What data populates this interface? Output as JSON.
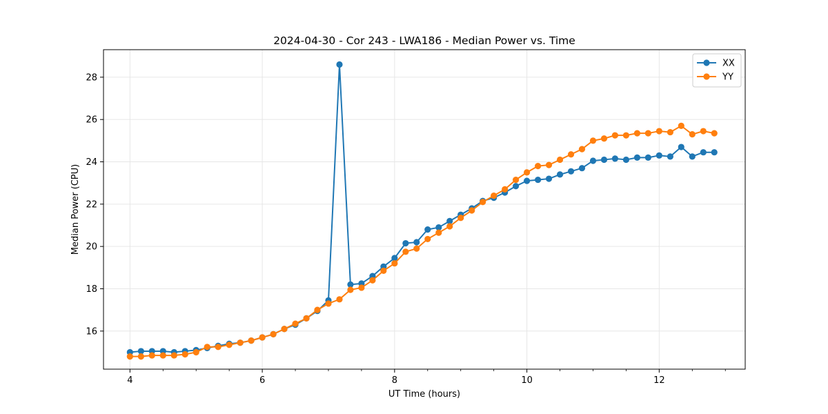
{
  "chart_data": {
    "type": "line",
    "title": "2024-04-30 - Cor 243 - LWA186 - Median Power vs. Time",
    "xlabel": "UT Time (hours)",
    "ylabel": "Median Power (CPU)",
    "xlim": [
      3.6,
      13.3
    ],
    "ylim": [
      14.2,
      29.3
    ],
    "xticks": [
      4,
      6,
      8,
      10,
      12
    ],
    "xtick_labels": [
      "4",
      "6",
      "8",
      "10",
      "12"
    ],
    "yticks": [
      16,
      18,
      20,
      22,
      24,
      26,
      28
    ],
    "ytick_labels": [
      "16",
      "18",
      "20",
      "22",
      "24",
      "26",
      "28"
    ],
    "grid": true,
    "legend_position": "top-right",
    "x": [
      4.0,
      4.167,
      4.333,
      4.5,
      4.667,
      4.833,
      5.0,
      5.167,
      5.333,
      5.5,
      5.667,
      5.833,
      6.0,
      6.167,
      6.333,
      6.5,
      6.667,
      6.833,
      7.0,
      7.167,
      7.333,
      7.5,
      7.667,
      7.833,
      8.0,
      8.167,
      8.333,
      8.5,
      8.667,
      8.833,
      9.0,
      9.167,
      9.333,
      9.5,
      9.667,
      9.833,
      10.0,
      10.167,
      10.333,
      10.5,
      10.667,
      10.833,
      11.0,
      11.167,
      11.333,
      11.5,
      11.667,
      11.833,
      12.0,
      12.167,
      12.333,
      12.5,
      12.667,
      12.833
    ],
    "series": [
      {
        "name": "XX",
        "color": "#1f77b4",
        "values": [
          15.0,
          15.05,
          15.05,
          15.05,
          15.0,
          15.05,
          15.1,
          15.2,
          15.3,
          15.4,
          15.45,
          15.55,
          15.7,
          15.85,
          16.1,
          16.3,
          16.6,
          16.95,
          17.45,
          28.6,
          18.2,
          18.25,
          18.6,
          19.05,
          19.45,
          20.15,
          20.2,
          20.8,
          20.9,
          21.2,
          21.5,
          21.8,
          22.15,
          22.3,
          22.55,
          22.85,
          23.1,
          23.15,
          23.2,
          23.4,
          23.55,
          23.7,
          24.05,
          24.1,
          24.15,
          24.1,
          24.2,
          24.2,
          24.3,
          24.25,
          24.7,
          24.25,
          24.45,
          24.45
        ]
      },
      {
        "name": "YY",
        "color": "#ff7f0e",
        "values": [
          14.8,
          14.8,
          14.85,
          14.85,
          14.85,
          14.9,
          15.0,
          15.25,
          15.25,
          15.35,
          15.45,
          15.55,
          15.7,
          15.85,
          16.1,
          16.35,
          16.6,
          17.0,
          17.3,
          17.5,
          17.95,
          18.05,
          18.4,
          18.85,
          19.2,
          19.75,
          19.9,
          20.35,
          20.65,
          20.95,
          21.35,
          21.7,
          22.1,
          22.4,
          22.7,
          23.15,
          23.5,
          23.8,
          23.85,
          24.1,
          24.35,
          24.6,
          25.0,
          25.1,
          25.25,
          25.25,
          25.35,
          25.35,
          25.45,
          25.4,
          25.7,
          25.3,
          25.45,
          25.35
        ]
      }
    ]
  }
}
